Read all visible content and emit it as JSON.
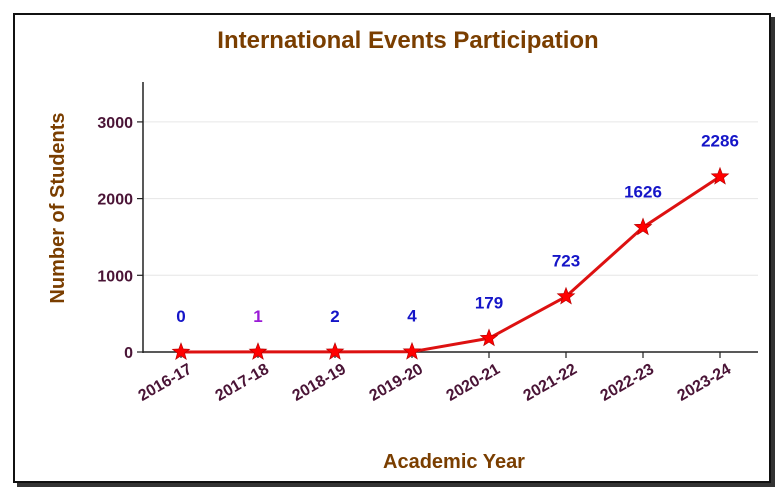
{
  "chart_data": {
    "type": "line",
    "title": "International Events Participation",
    "xlabel": "Academic Year",
    "ylabel": "Number of Students",
    "categories": [
      "2016-17",
      "2017-18",
      "2018-19",
      "2019-20",
      "2020-21",
      "2021-22",
      "2022-23",
      "2023-24"
    ],
    "series": [
      {
        "values": [
          0,
          1,
          2,
          4,
          179,
          723,
          1626,
          2286
        ]
      }
    ],
    "data_labels": [
      "0",
      "1",
      "2",
      "4",
      "179",
      "723",
      "1626",
      "2286"
    ],
    "y_ticks": [
      "0",
      "1000",
      "2000",
      "3000"
    ],
    "ylim": [
      0,
      3500
    ],
    "grid": "horizontal",
    "legend": "none",
    "colors": {
      "line": "#dd1111",
      "marker": "#ff0000",
      "title": "#7a3e00",
      "tick_text": "#4a1436",
      "label_default": "#1515c8",
      "label_highlight": "#9a1ad6",
      "grid": "#e6e6e6",
      "axis": "#222222"
    }
  }
}
